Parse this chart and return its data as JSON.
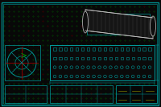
{
  "bg_color": "#080808",
  "border_color": "#008888",
  "grid_dot_green": "#005500",
  "grid_dot_red": "#550000",
  "teal": "#009999",
  "green": "#00aa00",
  "white": "#bbbbbb",
  "yellow": "#aaaa00",
  "red": "#aa0000",
  "figsize": [
    2.0,
    1.33
  ],
  "dpi": 100
}
